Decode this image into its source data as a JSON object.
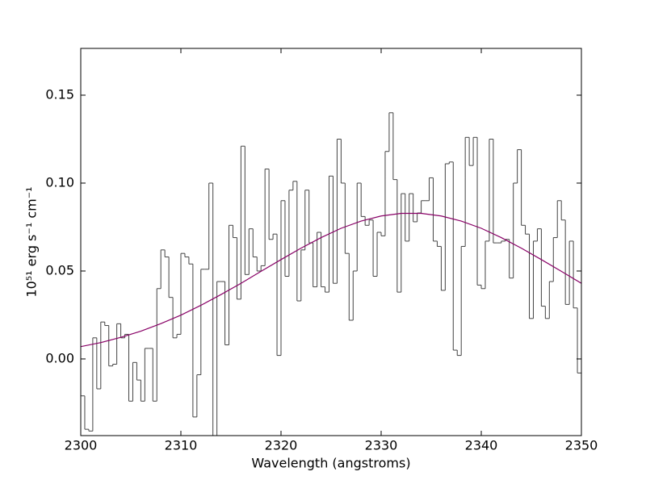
{
  "chart_data": {
    "type": "line",
    "xlabel": "Wavelength (angstroms)",
    "ylabel": "10⁵¹ erg s⁻¹ cm⁻¹",
    "xlim": [
      2300,
      2350
    ],
    "xticks": [
      2300,
      2310,
      2320,
      2330,
      2340,
      2350
    ],
    "ylim": [
      -0.0436,
      0.1766
    ],
    "yticks": [
      {
        "value": 0,
        "label": "0.00"
      },
      {
        "value": 0.05,
        "label": "0.05"
      },
      {
        "value": 0.1,
        "label": "0.10"
      },
      {
        "value": 0.15,
        "label": "0.15"
      }
    ],
    "grid": false,
    "series": [
      {
        "drawstyle": "steps",
        "color": "#444444",
        "bins": [
          2300,
          2300.4,
          2300.8,
          2301.2,
          2301.6,
          2302,
          2302.4,
          2302.8,
          2303.2,
          2303.6,
          2304,
          2304.4,
          2304.8,
          2305.2,
          2305.6,
          2306,
          2306.4,
          2306.8,
          2307.2,
          2307.6,
          2308,
          2308.4,
          2308.8,
          2309.2,
          2309.6,
          2310,
          2310.4,
          2310.8,
          2311.2,
          2311.6,
          2312,
          2312.4,
          2312.8,
          2313.2,
          2313.6,
          2314,
          2314.4,
          2314.8,
          2315.2,
          2315.6,
          2316,
          2316.4,
          2316.8,
          2317.2,
          2317.6,
          2318,
          2318.4,
          2318.8,
          2319.2,
          2319.6,
          2320,
          2320.4,
          2320.8,
          2321.2,
          2321.6,
          2322,
          2322.4,
          2322.8,
          2323.2,
          2323.6,
          2324,
          2324.4,
          2324.8,
          2325.2,
          2325.6,
          2326,
          2326.4,
          2326.8,
          2327.2,
          2327.6,
          2328,
          2328.4,
          2328.8,
          2329.2,
          2329.6,
          2330,
          2330.4,
          2330.8,
          2331.2,
          2331.6,
          2332,
          2332.4,
          2332.8,
          2333.2,
          2333.6,
          2334,
          2334.4,
          2334.8,
          2335.2,
          2335.6,
          2336,
          2336.4,
          2336.8,
          2337.2,
          2337.6,
          2338,
          2338.4,
          2338.8,
          2339.2,
          2339.6,
          2340,
          2340.4,
          2340.8,
          2341.2,
          2341.6,
          2342,
          2342.4,
          2342.8,
          2343.2,
          2343.6,
          2344,
          2344.4,
          2344.8,
          2345.2,
          2345.6,
          2346,
          2346.4,
          2346.8,
          2347.2,
          2347.6,
          2348,
          2348.4,
          2348.8,
          2349.2,
          2349.6,
          2350
        ],
        "values": [
          -0.021,
          -0.04,
          -0.041,
          0.012,
          -0.017,
          0.021,
          0.019,
          -0.004,
          -0.003,
          0.02,
          0.012,
          0.014,
          -0.024,
          -0.002,
          -0.012,
          -0.024,
          0.006,
          0.006,
          -0.024,
          0.04,
          0.062,
          0.058,
          0.035,
          0.012,
          0.014,
          0.06,
          0.058,
          0.054,
          -0.033,
          -0.009,
          0.051,
          0.051,
          0.1,
          -0.05,
          0.044,
          0.044,
          0.008,
          0.076,
          0.069,
          0.034,
          0.121,
          0.048,
          0.074,
          0.058,
          0.05,
          0.053,
          0.108,
          0.068,
          0.071,
          0.002,
          0.09,
          0.047,
          0.096,
          0.101,
          0.033,
          0.062,
          0.096,
          0.066,
          0.041,
          0.072,
          0.041,
          0.038,
          0.104,
          0.043,
          0.125,
          0.1,
          0.06,
          0.022,
          0.05,
          0.1,
          0.081,
          0.076,
          0.079,
          0.047,
          0.072,
          0.07,
          0.118,
          0.14,
          0.102,
          0.038,
          0.094,
          0.067,
          0.094,
          0.078,
          0.083,
          0.09,
          0.09,
          0.103,
          0.067,
          0.064,
          0.039,
          0.111,
          0.112,
          0.005,
          0.002,
          0.064,
          0.126,
          0.11,
          0.126,
          0.042,
          0.04,
          0.067,
          0.125,
          0.066,
          0.066,
          0.067,
          0.068,
          0.046,
          0.1,
          0.119,
          0.076,
          0.071,
          0.023,
          0.067,
          0.074,
          0.03,
          0.023,
          0.044,
          0.069,
          0.09,
          0.079,
          0.031,
          0.067,
          0.029,
          -0.008
        ]
      },
      {
        "color": "#880066",
        "x": [
          2300,
          2302,
          2304,
          2306,
          2308,
          2310,
          2312,
          2314,
          2316,
          2318,
          2320,
          2322,
          2324,
          2326,
          2328,
          2330,
          2332,
          2334,
          2336,
          2338,
          2340,
          2342,
          2344,
          2346,
          2348,
          2350
        ],
        "values": [
          0.007,
          0.0093,
          0.0123,
          0.0158,
          0.0201,
          0.0249,
          0.0305,
          0.0366,
          0.043,
          0.0498,
          0.0565,
          0.063,
          0.069,
          0.0743,
          0.0784,
          0.0813,
          0.0828,
          0.0828,
          0.0813,
          0.0784,
          0.0743,
          0.069,
          0.063,
          0.0565,
          0.0498,
          0.043
        ]
      }
    ]
  }
}
